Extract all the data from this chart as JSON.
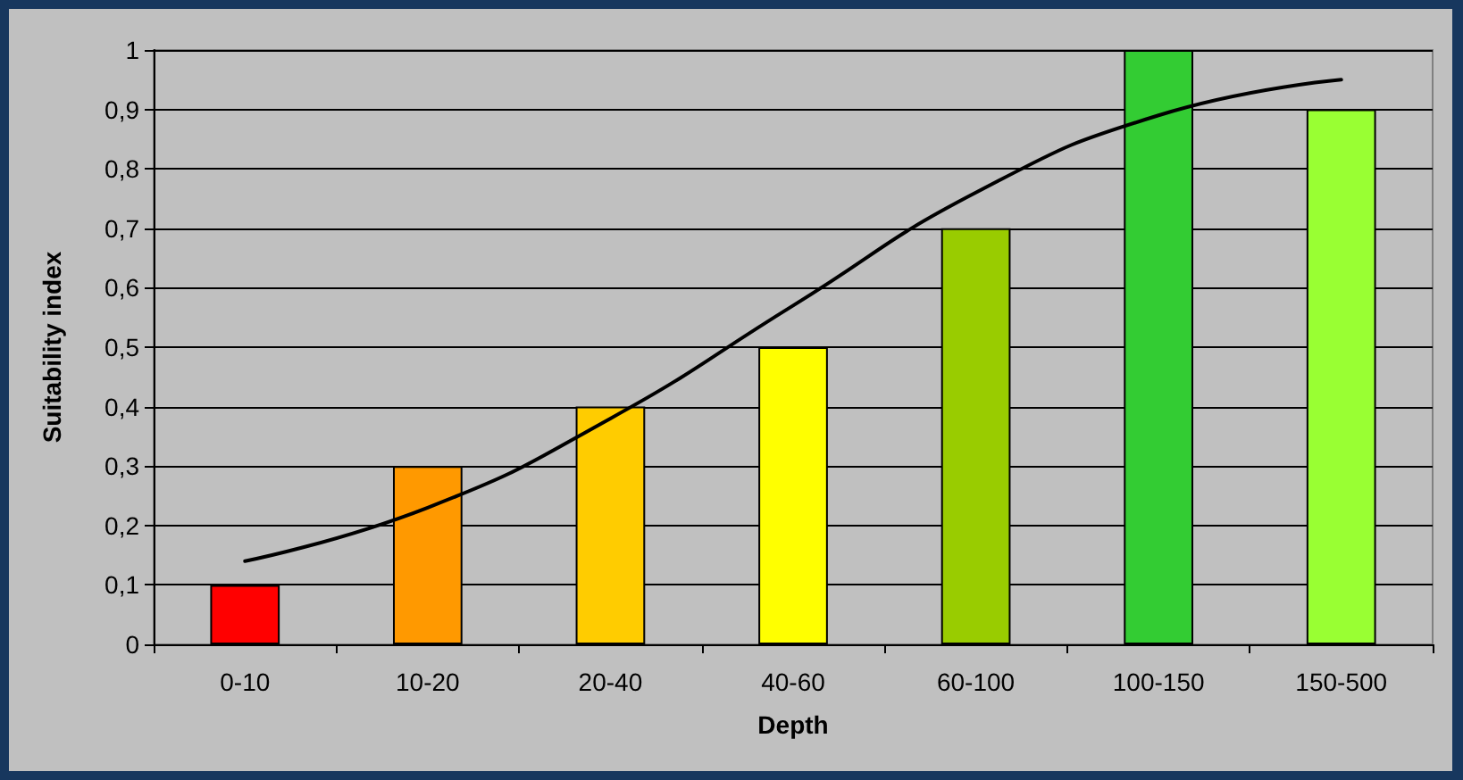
{
  "chart_data": {
    "type": "bar",
    "xlabel": "Depth",
    "ylabel": "Suitability index",
    "categories": [
      "0-10",
      "10-20",
      "20-40",
      "40-60",
      "60-100",
      "100-150",
      "150-500"
    ],
    "series": [
      {
        "colors": [
          "#ff0000",
          "#ff9900",
          "#ffcc00",
          "#ffff00",
          "#99cc00",
          "#33cc33",
          "#99ff33"
        ],
        "values": [
          0.1,
          0.3,
          0.4,
          0.5,
          0.7,
          1,
          0.9
        ]
      },
      {
        "type": "line",
        "color": "#000000",
        "x": [
          "0-10",
          "10-20",
          "20-40",
          "40-60",
          "60-100",
          "100-150",
          "150-500"
        ],
        "values": [
          0.14,
          0.23,
          0.38,
          0.57,
          0.76,
          0.89,
          0.95
        ]
      }
    ],
    "ylim": [
      0,
      1
    ],
    "yticks": [
      0,
      {
        "value": 0.1,
        "label": "0,1"
      },
      {
        "value": 0.2,
        "label": "0,2"
      },
      {
        "value": 0.3,
        "label": "0,3"
      },
      {
        "value": 0.4,
        "label": "0,4"
      },
      {
        "value": 0.5,
        "label": "0,5"
      },
      {
        "value": 0.6,
        "label": "0,6"
      },
      {
        "value": 0.7,
        "label": "0,7"
      },
      {
        "value": 0.8,
        "label": "0,8"
      },
      {
        "value": 0.9,
        "label": "0,9"
      },
      1
    ],
    "grid": "y",
    "marker": "none",
    "line_style": "solid"
  }
}
